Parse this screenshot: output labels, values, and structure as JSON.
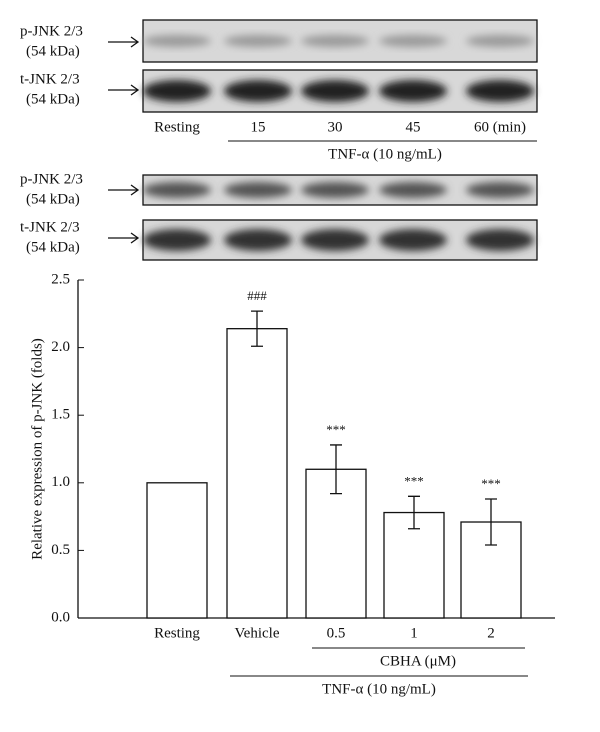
{
  "blots": {
    "top": {
      "rows": [
        {
          "name": "p-JNK 2/3",
          "size": "(54 kDa)"
        },
        {
          "name": "t-JNK 2/3",
          "size": "(54 kDa)"
        }
      ],
      "lanes": [
        "Resting",
        "15",
        "30",
        "45",
        "60 (min)"
      ],
      "treatment": "TNF-α (10 ng/mL)"
    },
    "bottom": {
      "rows": [
        {
          "name": "p-JNK 2/3",
          "size": "(54 kDa)"
        },
        {
          "name": "t-JNK 2/3",
          "size": "(54 kDa)"
        }
      ]
    }
  },
  "chart_data": {
    "type": "bar",
    "ylabel": "Relative expression of p-JNK (folds)",
    "categories": [
      "Resting",
      "Vehicle",
      "0.5",
      "1",
      "2"
    ],
    "values": [
      1.0,
      2.14,
      1.1,
      0.78,
      0.71
    ],
    "errors": [
      null,
      0.13,
      0.18,
      0.12,
      0.17
    ],
    "annotations": [
      null,
      "###",
      "***",
      "***",
      "***"
    ],
    "color": "#ffffff",
    "ylim": [
      0,
      2.5
    ],
    "yticks": [
      {
        "value": 0,
        "label": "0.0"
      },
      {
        "value": 0.5,
        "label": "0.5"
      },
      {
        "value": 1,
        "label": "1.0"
      },
      {
        "value": 1.5,
        "label": "1.5"
      },
      {
        "value": 2,
        "label": "2.0"
      },
      {
        "value": 2.5,
        "label": "2.5"
      }
    ],
    "group_labels": [
      "CBHA (μM)",
      "TNF-α (10 ng/mL)"
    ]
  }
}
